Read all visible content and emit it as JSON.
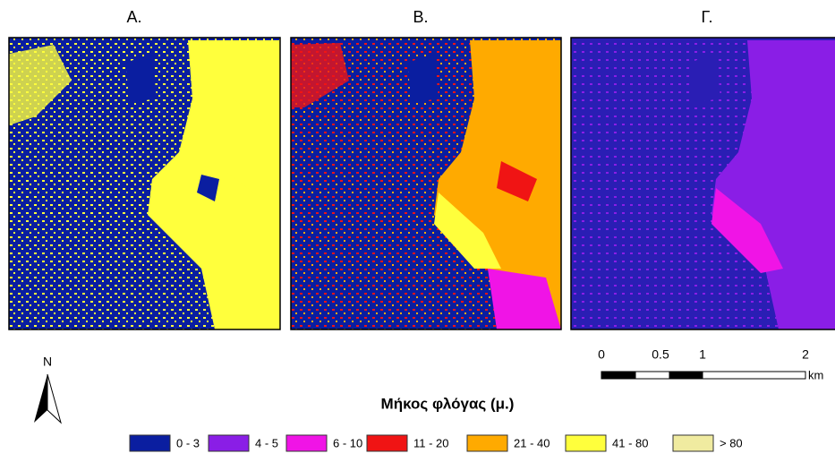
{
  "panels": [
    {
      "label": "Α."
    },
    {
      "label": "Β."
    },
    {
      "label": "Γ."
    }
  ],
  "north_arrow": {
    "label": "N"
  },
  "scale_bar": {
    "labels": [
      "0",
      "0.5",
      "1",
      "2"
    ],
    "unit": "km"
  },
  "legend": {
    "title": "Μήκος φλόγας (μ.)",
    "items": [
      {
        "label": "0 - 3",
        "color": "#0a1ea0"
      },
      {
        "label": "4 - 5",
        "color": "#8a1ee6"
      },
      {
        "label": "6 - 10",
        "color": "#f014e6"
      },
      {
        "label": "11 - 20",
        "color": "#f01414"
      },
      {
        "label": "21 - 40",
        "color": "#ffaa00"
      },
      {
        "label": "41 - 80",
        "color": "#ffff3c"
      },
      {
        "label": "> 80",
        "color": "#f0eba0"
      }
    ]
  }
}
